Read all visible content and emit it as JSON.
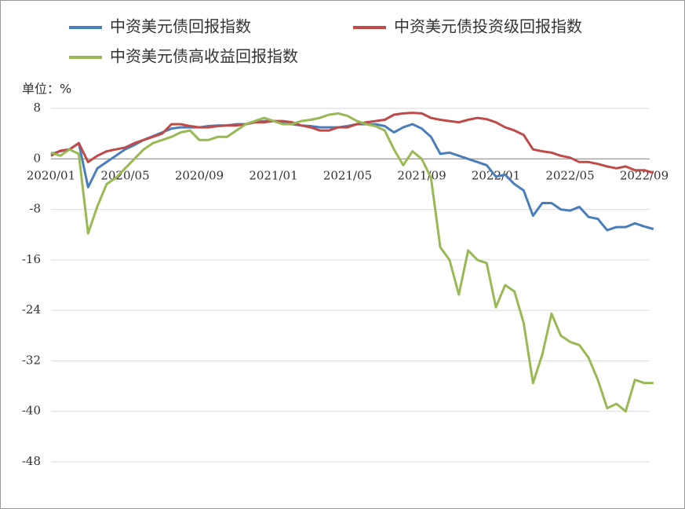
{
  "chart_data": {
    "type": "line",
    "unit_label": "单位：%",
    "categories": [
      "2020/01",
      null,
      null,
      null,
      null,
      null,
      null,
      null,
      "2020/05",
      null,
      null,
      null,
      null,
      null,
      null,
      null,
      "2020/09",
      null,
      null,
      null,
      null,
      null,
      null,
      null,
      "2021/01",
      null,
      null,
      null,
      null,
      null,
      null,
      null,
      "2021/05",
      null,
      null,
      null,
      null,
      null,
      null,
      null,
      "2021/09",
      null,
      null,
      null,
      null,
      null,
      null,
      null,
      "2022/01",
      null,
      null,
      null,
      null,
      null,
      null,
      null,
      "2022/05",
      null,
      null,
      null,
      null,
      null,
      null,
      null,
      "2022/09",
      null
    ],
    "series": [
      {
        "name": "中资美元债回报指数",
        "color": "#4a7ebb",
        "values": [
          0.8,
          1.2,
          1.5,
          2.5,
          -4.5,
          -1.5,
          -0.5,
          0.5,
          1.5,
          2.2,
          3,
          3.6,
          4.2,
          4.8,
          5,
          5,
          5,
          5.2,
          5.3,
          5.3,
          5.5,
          5.5,
          5.8,
          6,
          6,
          5.8,
          5.5,
          5.3,
          5.2,
          5,
          5,
          5,
          5.2,
          5.5,
          5.5,
          5.5,
          5.2,
          4.2,
          5,
          5.5,
          4.8,
          3.5,
          0.8,
          1,
          0.5,
          0,
          -0.5,
          -1,
          -2.8,
          -2.5,
          -4,
          -5,
          -9,
          -7,
          -7,
          -8,
          -8.2,
          -7.6,
          -9.2,
          -9.5,
          -11.3,
          -10.8,
          -10.8,
          -10.2,
          -10.7,
          -11.1
        ]
      },
      {
        "name": "中资美元债投资级回报指数",
        "color": "#be4b48",
        "values": [
          0.5,
          1.3,
          1.5,
          2.5,
          -0.5,
          0.5,
          1.2,
          1.5,
          1.8,
          2.5,
          3,
          3.5,
          4,
          5.5,
          5.5,
          5.2,
          5,
          5,
          5.2,
          5.3,
          5.3,
          5.5,
          5.8,
          5.8,
          6,
          6,
          5.8,
          5.3,
          5,
          4.5,
          4.5,
          5,
          5,
          5.5,
          5.8,
          6,
          6.2,
          7,
          7.2,
          7.3,
          7.2,
          6.5,
          6.2,
          6,
          5.8,
          6.2,
          6.5,
          6.3,
          5.8,
          5,
          4.5,
          3.8,
          1.5,
          1.2,
          1,
          0.5,
          0.2,
          -0.5,
          -0.5,
          -0.8,
          -1.2,
          -1.5,
          -1.2,
          -1.8,
          -1.8,
          -2.2
        ]
      },
      {
        "name": "中资美元债高收益回报指数",
        "color": "#98b954",
        "values": [
          1,
          0.5,
          1.5,
          0.8,
          -11.8,
          -7.5,
          -4,
          -3,
          -1.5,
          0,
          1.5,
          2.5,
          3,
          3.5,
          4.2,
          4.5,
          3,
          3,
          3.5,
          3.5,
          4.5,
          5.5,
          6,
          6.5,
          6,
          5.5,
          5.5,
          6,
          6.2,
          6.5,
          7,
          7.2,
          6.8,
          6,
          5.5,
          5.2,
          4.5,
          1.5,
          -1,
          1.2,
          0,
          -3,
          -14,
          -16,
          -21.5,
          -14.5,
          -16,
          -16.5,
          -23.5,
          -20,
          -21,
          -26,
          -35.5,
          -31,
          -24.5,
          -28,
          -29,
          -29.5,
          -31.5,
          -35,
          -39.5,
          -38.8,
          -40,
          -35,
          -35.5,
          -35.5
        ]
      }
    ],
    "ylim": [
      -48,
      8
    ],
    "yticks": [
      8,
      0,
      -8,
      -16,
      -24,
      -32,
      -40,
      -48
    ],
    "grid": true
  }
}
